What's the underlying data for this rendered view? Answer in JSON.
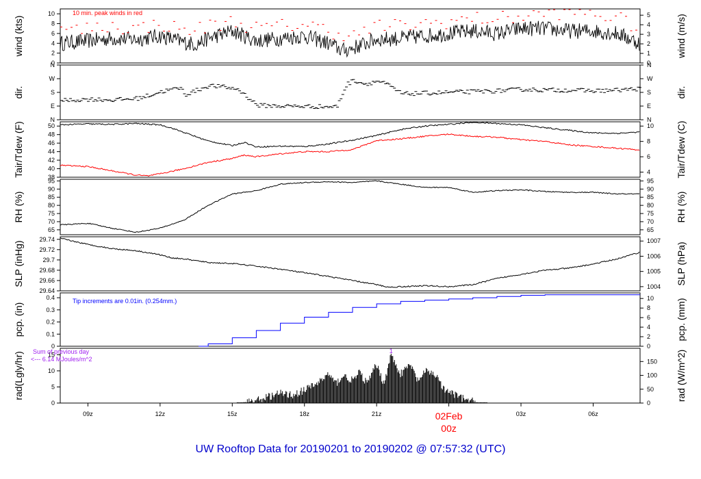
{
  "title": "UW Rooftop Data for 20190201  to  20190202 @ 07:57:32  (UTC)",
  "colors": {
    "main": "#000000",
    "peak": "#ff0000",
    "dew": "#ff0000",
    "pcp": "#0000ff",
    "note_rad": "#a020f0",
    "title": "#0000cc",
    "date": "#ff0000"
  },
  "time_axis": {
    "range_hours": [
      7.85,
      31.95
    ],
    "ticks": [
      {
        "label": "09z",
        "hour": 9
      },
      {
        "label": "12z",
        "hour": 12
      },
      {
        "label": "15z",
        "hour": 15
      },
      {
        "label": "18z",
        "hour": 18
      },
      {
        "label": "21z",
        "hour": 21
      },
      {
        "label": "03z",
        "hour": 27
      },
      {
        "label": "06z",
        "hour": 30
      }
    ],
    "date_marker": {
      "label": "02Feb",
      "sublabel": "00z",
      "hour": 24
    }
  },
  "panels": [
    {
      "id": "wind",
      "ylabel": "wind (kts)",
      "ylabel_right": "wind (m/s)",
      "ylim": [
        0,
        11
      ],
      "left_ticks": [
        0,
        2,
        4,
        6,
        8,
        10
      ],
      "right_ticks": [
        0,
        1,
        2,
        3,
        4,
        5
      ],
      "right_factor": 0.5144,
      "note": "10 min. peak winds in red"
    },
    {
      "id": "dir",
      "ylabel": "dir.",
      "ylabel_right": "dir.",
      "ylim": [
        0,
        360
      ],
      "left_ticks": [
        0,
        90,
        180,
        270,
        360
      ],
      "tick_names": [
        "N",
        "E",
        "S",
        "W",
        "N"
      ]
    },
    {
      "id": "temp",
      "ylabel": "Tair/Tdew (F)",
      "ylabel_right": "Tair/Tdew (C)",
      "ylim": [
        38,
        51
      ],
      "left_ticks": [
        38,
        40,
        42,
        44,
        46,
        48,
        50
      ],
      "right_ticks": [
        4,
        6,
        8,
        10
      ]
    },
    {
      "id": "rh",
      "ylabel": "RH (%)",
      "ylabel_right": "RH (%)",
      "ylim": [
        62,
        96
      ],
      "left_ticks": [
        65,
        70,
        75,
        80,
        85,
        90,
        95
      ],
      "right_ticks": [
        65,
        70,
        75,
        80,
        85,
        90,
        95
      ]
    },
    {
      "id": "slp",
      "ylabel": "SLP (inHg)",
      "ylabel_right": "SLP (hPa)",
      "ylim": [
        29.64,
        29.745
      ],
      "left_ticks": [
        29.64,
        29.66,
        29.68,
        29.7,
        29.72,
        29.74
      ],
      "right_ticks": [
        1004,
        1005,
        1006,
        1007
      ]
    },
    {
      "id": "pcp",
      "ylabel": "pcp. (in)",
      "ylabel_right": "pcp. (mm)",
      "ylim": [
        0,
        0.44
      ],
      "left_ticks": [
        0,
        0.1,
        0.2,
        0.3,
        0.4
      ],
      "right_ticks": [
        0,
        2,
        4,
        6,
        8,
        10
      ],
      "note": "Tip increments are 0.01in. (0.254mm.)"
    },
    {
      "id": "rad",
      "ylabel": "rad(Lgly/hr)",
      "ylabel_right": "rad (W/m^2)",
      "ylim": [
        0,
        17
      ],
      "left_ticks": [
        0,
        5,
        10,
        15
      ],
      "right_ticks": [
        0,
        50,
        100,
        150
      ],
      "right_factor": 11.63,
      "note": "Sum of previous day",
      "note2": "<--- 6.14 MJoules/m^2"
    }
  ],
  "chart_data": {
    "type": "line",
    "x_unit": "hours UTC from 2019-02-01 00z",
    "series": [
      {
        "panel": "wind",
        "kind": "noisy",
        "x": [
          7.85,
          9,
          10,
          11,
          12,
          13,
          13.5,
          14,
          15,
          16,
          17,
          18,
          19,
          19.6,
          20,
          21,
          22,
          23,
          24,
          25,
          26,
          27,
          28,
          29,
          30,
          31,
          31.95
        ],
        "y": [
          4,
          4.5,
          5,
          4.8,
          5.5,
          4.2,
          3.8,
          5,
          6.5,
          4.5,
          5,
          5.5,
          4,
          2.5,
          3,
          4.8,
          5,
          5.5,
          6,
          6.5,
          6,
          7,
          7,
          6.5,
          6.5,
          6,
          4
        ],
        "amp": 1.6
      },
      {
        "panel": "wind",
        "kind": "peak",
        "color": "peak",
        "x": [
          7.85,
          9,
          10,
          11,
          12,
          13,
          14,
          15,
          16,
          17,
          18,
          19,
          20,
          21,
          22,
          23,
          24,
          25,
          26,
          27,
          28,
          29,
          30,
          31,
          31.95
        ],
        "y": [
          6.5,
          7,
          7.5,
          7,
          8,
          6.5,
          7.5,
          8.5,
          7,
          7.5,
          8,
          6.5,
          5.5,
          7.5,
          7.5,
          8,
          8.5,
          9,
          9,
          9.5,
          10,
          10.5,
          10,
          9,
          7
        ],
        "amp": 1.5
      },
      {
        "panel": "dir",
        "kind": "dash",
        "x": [
          7.85,
          9,
          10,
          11,
          11.5,
          12,
          12.8,
          13,
          14,
          14.6,
          15.2,
          16,
          17,
          18,
          19.3,
          19.7,
          20,
          20.5,
          21,
          21.4,
          22,
          23,
          24,
          25,
          26,
          27,
          28,
          29,
          30,
          31,
          31.95
        ],
        "y": [
          125,
          135,
          130,
          140,
          160,
          185,
          210,
          165,
          225,
          215,
          200,
          95,
          90,
          88,
          85,
          230,
          260,
          235,
          255,
          230,
          170,
          175,
          180,
          185,
          190,
          200,
          195,
          195,
          190,
          195,
          205
        ],
        "amp": 14
      },
      {
        "panel": "temp",
        "kind": "line",
        "x": [
          7.85,
          9,
          10,
          11,
          12,
          12.5,
          13,
          13.5,
          14,
          15,
          15.5,
          16,
          17,
          18,
          19,
          20,
          21,
          22,
          23,
          24,
          25,
          26,
          27,
          28,
          29,
          30,
          31,
          31.95
        ],
        "y": [
          50.3,
          50.5,
          50.4,
          50.6,
          50.3,
          49.5,
          48.5,
          47.5,
          46.5,
          45.4,
          46.2,
          45.1,
          45.3,
          45.2,
          45.8,
          46.7,
          47.8,
          49.2,
          50,
          50.4,
          50.9,
          50.6,
          50.3,
          49.6,
          49,
          48.4,
          48.3,
          48.6
        ],
        "amp": 0.15
      },
      {
        "panel": "temp",
        "kind": "line",
        "color": "dew",
        "x": [
          7.85,
          9,
          10,
          11,
          11.5,
          12,
          13,
          14,
          15,
          15.5,
          16,
          17,
          18,
          19,
          20,
          21,
          22,
          23,
          24,
          25,
          26,
          27,
          28,
          29,
          30,
          31,
          31.95
        ],
        "y": [
          40.8,
          40.5,
          39.5,
          38.5,
          38.3,
          38.8,
          40,
          41.5,
          42.4,
          43.2,
          42.8,
          43.5,
          44,
          44,
          44.5,
          46.6,
          47,
          47.6,
          48.1,
          47.6,
          47.4,
          46.8,
          46.4,
          45.6,
          45.2,
          44.8,
          44.4
        ],
        "amp": 0.15
      },
      {
        "panel": "rh",
        "kind": "line",
        "x": [
          7.85,
          9,
          10,
          11,
          12,
          13,
          14,
          15,
          16,
          17,
          18,
          19,
          20,
          21,
          22,
          23,
          24,
          25,
          26,
          27,
          28,
          29,
          30,
          31,
          31.95
        ],
        "y": [
          68,
          69,
          66,
          63.5,
          66,
          71,
          80,
          87,
          89,
          93,
          94,
          94.5,
          94,
          95,
          93,
          91,
          91,
          88,
          89,
          89.5,
          88.5,
          88,
          88,
          87,
          87
        ],
        "amp": 0.3
      },
      {
        "panel": "slp",
        "kind": "line",
        "x": [
          7.85,
          9,
          10,
          11,
          12,
          12.5,
          13,
          14,
          15,
          16,
          17,
          18,
          19,
          20,
          21,
          21.5,
          22,
          23,
          24,
          25,
          26,
          27,
          28,
          29,
          30,
          31,
          31.95
        ],
        "y": [
          29.742,
          29.73,
          29.722,
          29.718,
          29.71,
          29.704,
          29.702,
          29.695,
          29.693,
          29.688,
          29.682,
          29.675,
          29.668,
          29.66,
          29.652,
          29.647,
          29.648,
          29.65,
          29.648,
          29.652,
          29.664,
          29.672,
          29.68,
          29.684,
          29.692,
          29.702,
          29.715
        ],
        "amp": 0.0012
      },
      {
        "panel": "pcp",
        "kind": "step",
        "color": "pcp",
        "x": [
          7.85,
          13.6,
          14,
          15,
          16,
          17,
          18,
          19,
          20,
          21,
          22,
          23,
          24,
          25,
          26,
          27,
          28,
          31.95
        ],
        "y": [
          0,
          0,
          0.02,
          0.07,
          0.13,
          0.19,
          0.24,
          0.28,
          0.32,
          0.35,
          0.37,
          0.38,
          0.39,
          0.4,
          0.41,
          0.42,
          0.425,
          0.425
        ]
      },
      {
        "panel": "rad",
        "kind": "bars",
        "x": [
          15.2,
          16,
          16.5,
          17,
          17.5,
          18,
          18.5,
          19,
          19.3,
          19.6,
          20,
          20.3,
          20.6,
          21,
          21.3,
          21.6,
          22,
          22.4,
          22.7,
          23.1,
          23.5,
          23.8,
          24,
          24.4,
          24.8,
          25.2,
          25.6
        ],
        "y": [
          0,
          0.8,
          2,
          3,
          2.5,
          4,
          6,
          9,
          6,
          8.5,
          7,
          9.5,
          6,
          12,
          6,
          15,
          9,
          12,
          7,
          10,
          8.5,
          4,
          3.5,
          2,
          0.8,
          0.2,
          0
        ],
        "amp": 1.2
      }
    ]
  }
}
